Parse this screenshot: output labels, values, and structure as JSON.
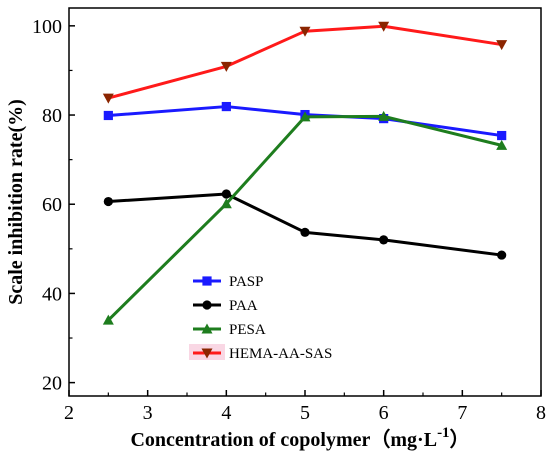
{
  "chart_data": {
    "type": "line",
    "xlabel": "Concentration of copolymer（mg·L",
    "xlabel_sup": "-1",
    "xlabel_close": "）",
    "ylabel": "Scale inhibition rate(%)",
    "xlim": [
      2,
      8
    ],
    "ylim": [
      17,
      104
    ],
    "xticks": [
      2,
      3,
      4,
      5,
      6,
      7,
      8
    ],
    "yticks": [
      20,
      40,
      60,
      80,
      100
    ],
    "x": [
      2.5,
      4,
      5,
      6,
      7.5
    ],
    "legend_position": "lower-left",
    "series": [
      {
        "name": "PASP",
        "marker": "square",
        "color": "#1a1aff",
        "values": [
          79.9,
          81.9,
          80.1,
          79.2,
          75.4
        ]
      },
      {
        "name": "PAA",
        "marker": "circle",
        "color": "#000000",
        "values": [
          60.6,
          62.3,
          53.7,
          52.0,
          48.6
        ]
      },
      {
        "name": "PESA",
        "marker": "triangle-up",
        "color": "#1e7d1e",
        "values": [
          34.0,
          60.1,
          79.6,
          79.7,
          73.2
        ]
      },
      {
        "name": "HEMA-AA-SAS",
        "marker": "triangle-down",
        "color": "#ff1a1a",
        "marker_color": "#8b2500",
        "values": [
          83.8,
          90.9,
          98.8,
          99.9,
          95.8
        ]
      }
    ]
  }
}
